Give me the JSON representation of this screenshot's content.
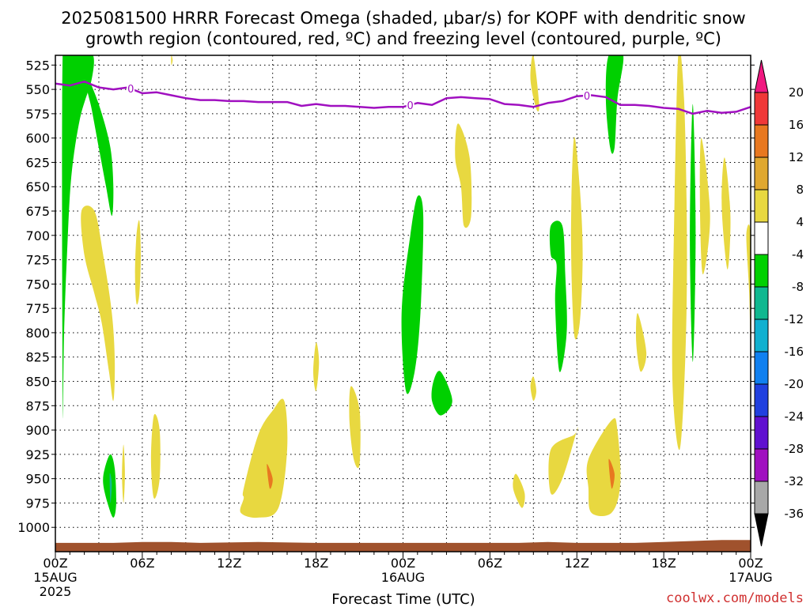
{
  "chart_data": {
    "type": "heatmap",
    "title_line1": "2025081500 HRRR Forecast Omega (shaded, μbar/s) for KOPF with dendritic snow",
    "title_line2": "growth region (contoured, red, ºC) and freezing level (contoured, purple, ºC)",
    "xlabel": "Forecast Time (UTC)",
    "credit": "coolwx.com/models",
    "x_unit": "forecast hour",
    "xlim": [
      0,
      48
    ],
    "y_unit": "hPa",
    "ylim": [
      1025,
      515
    ],
    "y_ticks": [
      525,
      550,
      575,
      600,
      625,
      650,
      675,
      700,
      725,
      750,
      775,
      800,
      825,
      850,
      875,
      900,
      925,
      950,
      975,
      1000
    ],
    "x_ticks": [
      {
        "hour": 0,
        "label": "00Z",
        "sub1": "15AUG",
        "sub2": "2025"
      },
      {
        "hour": 6,
        "label": "06Z",
        "sub1": "",
        "sub2": ""
      },
      {
        "hour": 12,
        "label": "12Z",
        "sub1": "",
        "sub2": ""
      },
      {
        "hour": 18,
        "label": "18Z",
        "sub1": "",
        "sub2": ""
      },
      {
        "hour": 24,
        "label": "00Z",
        "sub1": "16AUG",
        "sub2": ""
      },
      {
        "hour": 30,
        "label": "06Z",
        "sub1": "",
        "sub2": ""
      },
      {
        "hour": 36,
        "label": "12Z",
        "sub1": "",
        "sub2": ""
      },
      {
        "hour": 42,
        "label": "18Z",
        "sub1": "",
        "sub2": ""
      },
      {
        "hour": 48,
        "label": "00Z",
        "sub1": "17AUG",
        "sub2": ""
      }
    ],
    "grid": true,
    "colorbar": {
      "labels": [
        "20",
        "16",
        "12",
        "8",
        "4",
        "-4",
        "-8",
        "-12",
        "-16",
        "-20",
        "-24",
        "-28",
        "-32",
        "-36"
      ],
      "bins": [
        {
          "color": "#f01880"
        },
        {
          "color": "#f03838"
        },
        {
          "color": "#e87820"
        },
        {
          "color": "#e0a830"
        },
        {
          "color": "#e8d840"
        },
        {
          "color": "#ffffff"
        },
        {
          "color": "#00d000"
        },
        {
          "color": "#10b890"
        },
        {
          "color": "#10b0d0"
        },
        {
          "color": "#1080f0"
        },
        {
          "color": "#2040e0"
        },
        {
          "color": "#6010d0"
        },
        {
          "color": "#a010c0"
        },
        {
          "color": "#a8a8a8"
        },
        {
          "color": "#000000"
        }
      ]
    },
    "freezing_level": {
      "color": "#a010c0",
      "label": "0",
      "label_hours": [
        5.2,
        24.5,
        36.7
      ],
      "hours": [
        0,
        1,
        2,
        3,
        4,
        5,
        6,
        7,
        8,
        9,
        10,
        11,
        12,
        13,
        14,
        15,
        16,
        17,
        18,
        19,
        20,
        21,
        22,
        23,
        24,
        25,
        26,
        27,
        28,
        29,
        30,
        31,
        32,
        33,
        34,
        35,
        36,
        37,
        38,
        39,
        40,
        41,
        42,
        43,
        44,
        45,
        46,
        47,
        48
      ],
      "pressure": [
        544,
        546,
        542,
        548,
        550,
        548,
        554,
        553,
        556,
        559,
        561,
        561,
        562,
        562,
        563,
        563,
        563,
        567,
        565,
        567,
        567,
        568,
        569,
        568,
        568,
        564,
        566,
        559,
        558,
        559,
        560,
        565,
        566,
        568,
        564,
        562,
        557,
        556,
        558,
        566,
        566,
        567,
        569,
        570,
        575,
        572,
        574,
        573,
        568
      ]
    },
    "terrain": {
      "color": "#a0522d",
      "hours": [
        0,
        4,
        6,
        8,
        10,
        14,
        18,
        22,
        26,
        30,
        32,
        34,
        36,
        38,
        40,
        42,
        44,
        46,
        48
      ],
      "pressure": [
        1016,
        1016,
        1015,
        1015,
        1016,
        1015,
        1016,
        1016,
        1016,
        1016,
        1016,
        1015,
        1016,
        1016,
        1016,
        1015,
        1014,
        1013,
        1013
      ]
    },
    "series": [
      {
        "color": "#00d000",
        "hours": [
          0.5,
          1.0,
          1.7,
          2.6,
          2.5,
          1.7,
          1.1,
          0.8,
          0.6,
          0.5
        ],
        "pressure": [
          515,
          515,
          515,
          515,
          540,
          580,
          640,
          720,
          800,
          875
        ]
      },
      {
        "color": "#00d000",
        "hours": [
          2.3,
          3.1,
          3.8,
          4.0,
          3.9,
          3.5,
          3.0,
          2.5,
          2.2
        ],
        "pressure": [
          540,
          570,
          610,
          650,
          680,
          650,
          610,
          570,
          550
        ]
      },
      {
        "color": "#e8d840",
        "hours": [
          1.8,
          2.7,
          3.3,
          3.9,
          4.1,
          4.0,
          3.7,
          3.2,
          2.7,
          2.0
        ],
        "pressure": [
          675,
          675,
          720,
          780,
          830,
          870,
          840,
          790,
          760,
          720
        ]
      },
      {
        "color": "#e8d840",
        "hours": [
          5.8,
          5.9,
          5.8,
          5.6,
          5.5,
          5.6
        ],
        "pressure": [
          685,
          720,
          760,
          770,
          740,
          700
        ]
      },
      {
        "color": "#e8d840",
        "hours": [
          4.7,
          4.8,
          4.7,
          4.6
        ],
        "pressure": [
          915,
          945,
          975,
          945
        ]
      },
      {
        "color": "#e8d840",
        "hours": [
          6.8,
          7.2,
          7.2,
          6.8,
          6.6
        ],
        "pressure": [
          885,
          900,
          950,
          970,
          930
        ]
      },
      {
        "color": "#00d000",
        "hours": [
          3.4,
          3.8,
          4.1,
          4.2,
          4.0,
          3.6,
          3.3
        ],
        "pressure": [
          940,
          925,
          940,
          975,
          990,
          975,
          955
        ]
      },
      {
        "color": "#10b890",
        "hours": [
          3.75,
          3.9,
          3.8
        ],
        "pressure": [
          945,
          955,
          975
        ]
      },
      {
        "color": "#e8d840",
        "hours": [
          8.0,
          8.1,
          8.0
        ],
        "pressure": [
          515,
          520,
          525
        ]
      },
      {
        "color": "#e8d840",
        "hours": [
          13.0,
          14.0,
          15.0,
          15.8,
          16.0,
          15.4,
          14.0,
          12.8,
          13.0
        ],
        "pressure": [
          960,
          905,
          880,
          870,
          920,
          980,
          990,
          985,
          970
        ]
      },
      {
        "color": "#e87820",
        "hours": [
          14.6,
          15.0,
          14.8
        ],
        "pressure": [
          935,
          950,
          960
        ]
      },
      {
        "color": "#e8d840",
        "hours": [
          18.0,
          18.2,
          18.0,
          17.8
        ],
        "pressure": [
          810,
          830,
          860,
          840
        ]
      },
      {
        "color": "#e8d840",
        "hours": [
          20.4,
          21.0,
          21.0,
          20.6,
          20.3
        ],
        "pressure": [
          855,
          880,
          935,
          930,
          890
        ]
      },
      {
        "color": "#00d000",
        "hours": [
          25.0,
          25.4,
          25.2,
          24.8,
          24.2,
          23.9,
          24.5
        ],
        "pressure": [
          660,
          680,
          780,
          840,
          860,
          780,
          700
        ]
      },
      {
        "color": "#e8d840",
        "hours": [
          27.8,
          28.6,
          28.7,
          28.2,
          28.0,
          27.6
        ],
        "pressure": [
          585,
          620,
          680,
          690,
          650,
          620
        ]
      },
      {
        "color": "#00d000",
        "hours": [
          26.6,
          27.4,
          26.6,
          26.0,
          26.1
        ],
        "pressure": [
          840,
          870,
          885,
          870,
          850
        ]
      },
      {
        "color": "#e8d840",
        "hours": [
          31.8,
          32.4,
          32.2,
          31.6
        ],
        "pressure": [
          945,
          965,
          980,
          960
        ]
      },
      {
        "color": "#e8d840",
        "hours": [
          33.0,
          33.4,
          33.2,
          32.8
        ],
        "pressure": [
          515,
          565,
          570,
          540
        ]
      },
      {
        "color": "#e8d840",
        "hours": [
          33.0,
          33.2,
          33.0,
          32.8
        ],
        "pressure": [
          845,
          860,
          870,
          855
        ]
      },
      {
        "color": "#00d000",
        "hours": [
          34.2,
          35.0,
          35.2,
          35.3,
          34.8,
          34.5,
          34.6,
          34.2
        ],
        "pressure": [
          690,
          690,
          740,
          800,
          840,
          770,
          730,
          720
        ]
      },
      {
        "color": "#e8d840",
        "hours": [
          34.2,
          35.8,
          36.0,
          35.0,
          34.2
        ],
        "pressure": [
          920,
          905,
          900,
          950,
          965
        ]
      },
      {
        "color": "#e8d840",
        "hours": [
          35.8,
          36.2,
          36.4,
          36.2,
          35.8,
          35.6
        ],
        "pressure": [
          600,
          650,
          720,
          790,
          800,
          700
        ]
      },
      {
        "color": "#00d000",
        "hours": [
          38.2,
          39.2,
          38.8,
          38.6,
          38.3,
          38.0
        ],
        "pressure": [
          515,
          515,
          560,
          610,
          610,
          560
        ]
      },
      {
        "color": "#e8d840",
        "hours": [
          36.8,
          38.4,
          38.8,
          39.0,
          38.4,
          37.0,
          36.8
        ],
        "pressure": [
          930,
          890,
          900,
          955,
          985,
          985,
          960
        ]
      },
      {
        "color": "#e87820",
        "hours": [
          38.2,
          38.6,
          38.4
        ],
        "pressure": [
          930,
          945,
          960
        ]
      },
      {
        "color": "#e8d840",
        "hours": [
          40.2,
          40.8,
          40.4,
          40.1
        ],
        "pressure": [
          780,
          820,
          840,
          810
        ]
      },
      {
        "color": "#e8d840",
        "hours": [
          43.0,
          43.4,
          43.6,
          43.5,
          43.1,
          42.6,
          42.7
        ],
        "pressure": [
          515,
          560,
          700,
          820,
          920,
          850,
          700
        ]
      },
      {
        "color": "#00d000",
        "hours": [
          44.0,
          44.2,
          44.0,
          43.8
        ],
        "pressure": [
          565,
          700,
          830,
          700
        ]
      },
      {
        "color": "#e8d840",
        "hours": [
          44.6,
          45.2,
          44.7,
          44.5
        ],
        "pressure": [
          600,
          680,
          740,
          670
        ]
      },
      {
        "color": "#e8d840",
        "hours": [
          46.2,
          46.6,
          46.4,
          46.0
        ],
        "pressure": [
          620,
          680,
          735,
          670
        ]
      },
      {
        "color": "#e8d840",
        "hours": [
          47.7,
          48.0,
          48.0,
          47.9
        ],
        "pressure": [
          700,
          700,
          815,
          760
        ]
      }
    ]
  }
}
